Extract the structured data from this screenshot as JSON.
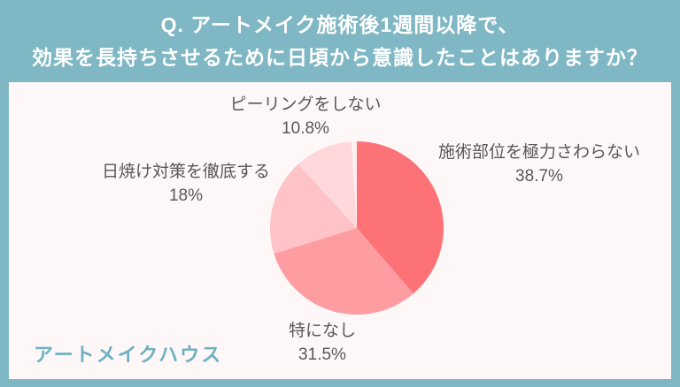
{
  "header": {
    "line1": "Q. アートメイク施術後1週間以降で、",
    "line2": "効果を長持ちさせるために日頃から意識したことはありますか？"
  },
  "footer": {
    "brand": "アートメイクハウス"
  },
  "colors": {
    "frame_teal": "#7fb7c4",
    "content_background": "#fdf8f7",
    "label_text": "#595757",
    "brand_text": "#6fb0c2"
  },
  "chart_data": {
    "type": "pie",
    "start_angle_deg_from_top": 0,
    "direction": "clockwise",
    "legend": "none",
    "labels_position": "outside",
    "slices": [
      {
        "label": "施術部位を極力さわらない",
        "value": 38.7,
        "display_pct": "38.7%",
        "color": "#fc7277"
      },
      {
        "label": "特になし",
        "value": 31.5,
        "display_pct": "31.5%",
        "color": "#fd9da1"
      },
      {
        "label": "日焼け対策を徹底する",
        "value": 18,
        "display_pct": "18%",
        "color": "#fec3c6"
      },
      {
        "label": "ピーリングをしない",
        "value": 10.8,
        "display_pct": "10.8%",
        "color": "#fed8db"
      },
      {
        "label": "",
        "value": 1.0,
        "display_pct": "",
        "color": "#fff0f2"
      }
    ]
  }
}
